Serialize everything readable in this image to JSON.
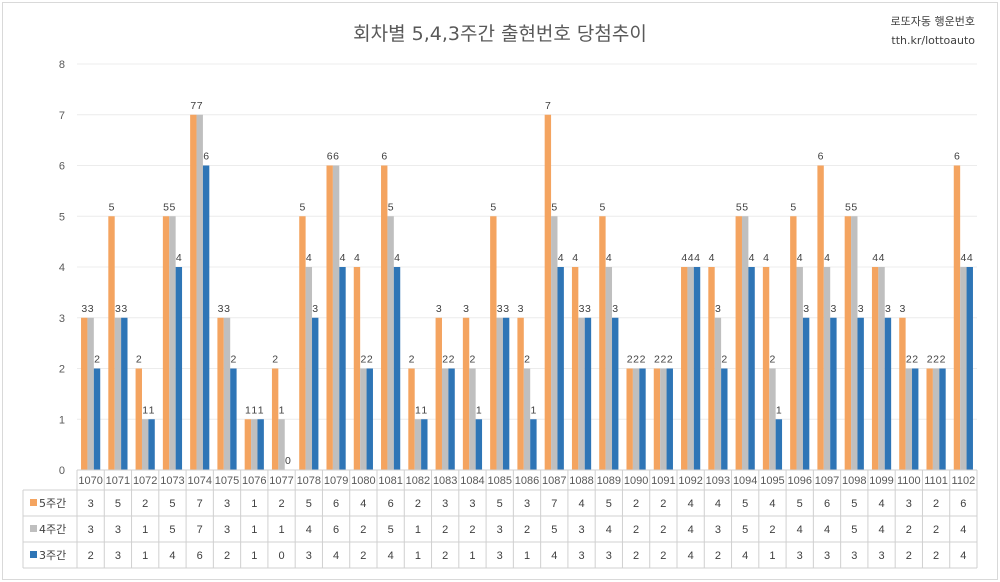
{
  "watermark": {
    "line1": "로또자동 행운번호",
    "line2": "tth.kr/lottoauto"
  },
  "chart_data": {
    "type": "bar",
    "title": "회차별 5,4,3주간 출현번호 당첨추이",
    "categories": [
      "1070",
      "1071",
      "1072",
      "1073",
      "1074",
      "1075",
      "1076",
      "1077",
      "1078",
      "1079",
      "1080",
      "1081",
      "1082",
      "1083",
      "1084",
      "1085",
      "1086",
      "1087",
      "1088",
      "1089",
      "1090",
      "1091",
      "1092",
      "1093",
      "1094",
      "1095",
      "1096",
      "1097",
      "1098",
      "1099",
      "1100",
      "1101",
      "1102"
    ],
    "series": [
      {
        "name": "5주간",
        "color": "#F4A460",
        "values": [
          3,
          5,
          2,
          5,
          7,
          3,
          1,
          2,
          5,
          6,
          4,
          6,
          2,
          3,
          3,
          5,
          3,
          7,
          4,
          5,
          2,
          2,
          4,
          4,
          5,
          4,
          5,
          6,
          5,
          4,
          3,
          2,
          6
        ]
      },
      {
        "name": "4주간",
        "color": "#BFBFBF",
        "values": [
          3,
          3,
          1,
          5,
          7,
          3,
          1,
          1,
          4,
          6,
          2,
          5,
          1,
          2,
          2,
          3,
          2,
          5,
          3,
          4,
          2,
          2,
          4,
          3,
          5,
          2,
          4,
          4,
          5,
          4,
          2,
          2,
          4
        ]
      },
      {
        "name": "3주간",
        "color": "#2E75B6",
        "values": [
          2,
          3,
          1,
          4,
          6,
          2,
          1,
          0,
          3,
          4,
          2,
          4,
          1,
          2,
          1,
          3,
          1,
          4,
          3,
          3,
          2,
          2,
          4,
          2,
          4,
          1,
          3,
          3,
          3,
          3,
          2,
          2,
          4
        ]
      }
    ],
    "ylim": [
      0,
      8
    ],
    "yticks": [
      0,
      1,
      2,
      3,
      4,
      5,
      6,
      7,
      8
    ],
    "grid": true,
    "legend": "data-table"
  }
}
